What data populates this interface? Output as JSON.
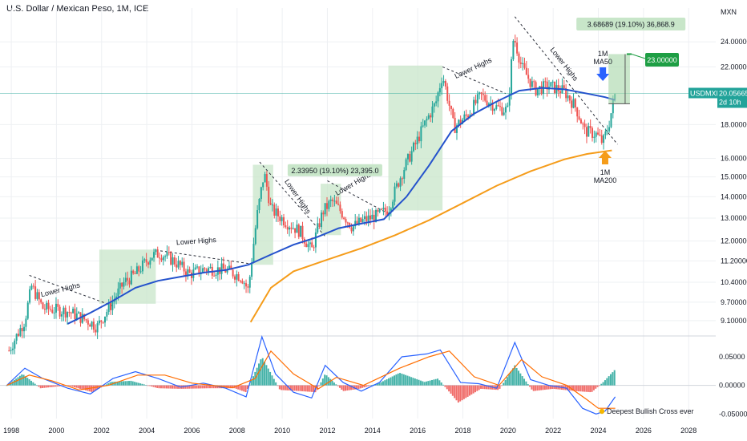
{
  "header": {
    "title": "U.S. Dollar / Mexican Peso, 1M, ICE"
  },
  "colors": {
    "up": "#26a69a",
    "down": "#ef5350",
    "ma50": "#2452cc",
    "ma200": "#f59c1a",
    "box": "#c8e6c9",
    "macd": "#2962ff",
    "signal": "#ff6d00",
    "grid": "#eef0f3",
    "tp": "#1e9e44",
    "price_tag": "#22a39a"
  },
  "chart_data": {
    "type": "candlestick",
    "symbol": "USDMXN",
    "axes": {
      "y_unit_label": "MXN",
      "y_scale": "log",
      "y_ticks": [
        "24.00000",
        "22.00000",
        "18.00000",
        "16.00000",
        "15.00000",
        "14.00000",
        "13.00000",
        "12.00000",
        "11.20000",
        "10.40000",
        "9.70000",
        "9.10000"
      ],
      "y_tick_values": [
        24,
        22,
        18,
        16,
        15,
        14,
        13,
        12,
        11.2,
        10.4,
        9.7,
        9.1
      ],
      "y_range": [
        8.65,
        27.0
      ],
      "x_ticks": [
        "1998",
        "2000",
        "2002",
        "2004",
        "2006",
        "2008",
        "2010",
        "2012",
        "2014",
        "2016",
        "2018",
        "2020",
        "2022",
        "2024",
        "2026",
        "2028"
      ],
      "x_tick_values": [
        1998,
        2000,
        2002,
        2004,
        2006,
        2008,
        2010,
        2012,
        2014,
        2016,
        2018,
        2020,
        2022,
        2024,
        2026,
        2028
      ],
      "x_range": [
        1997.5,
        2029.2
      ],
      "macd_ticks": [
        "0.05000",
        "0.00000",
        "-0.05000"
      ],
      "macd_tick_values": [
        0.05,
        0,
        -0.05
      ],
      "macd_range": [
        -0.058,
        0.085
      ]
    },
    "price_knots": [
      [
        1997.9,
        8.2
      ],
      [
        1998.6,
        9.1
      ],
      [
        1998.9,
        10.25
      ],
      [
        1999.4,
        9.5
      ],
      [
        2000.5,
        9.4
      ],
      [
        2001.5,
        9.05
      ],
      [
        2001.8,
        8.9
      ],
      [
        2002.4,
        9.6
      ],
      [
        2003.0,
        10.4
      ],
      [
        2003.5,
        10.7
      ],
      [
        2004.2,
        11.4
      ],
      [
        2004.6,
        11.5
      ],
      [
        2005.2,
        11.2
      ],
      [
        2005.9,
        10.7
      ],
      [
        2006.6,
        10.9
      ],
      [
        2007.5,
        10.85
      ],
      [
        2008.2,
        10.6
      ],
      [
        2008.5,
        10.1
      ],
      [
        2008.9,
        13.2
      ],
      [
        2009.2,
        15.2
      ],
      [
        2009.5,
        13.4
      ],
      [
        2010.2,
        12.8
      ],
      [
        2010.8,
        12.4
      ],
      [
        2011.3,
        11.6
      ],
      [
        2011.8,
        13.3
      ],
      [
        2012.2,
        13.8
      ],
      [
        2012.6,
        13.3
      ],
      [
        2013.1,
        12.6
      ],
      [
        2013.6,
        12.9
      ],
      [
        2014.2,
        13.1
      ],
      [
        2014.7,
        13.4
      ],
      [
        2015.3,
        15.2
      ],
      [
        2015.9,
        16.8
      ],
      [
        2016.4,
        18.3
      ],
      [
        2016.8,
        19.4
      ],
      [
        2017.1,
        21.4
      ],
      [
        2017.6,
        17.8
      ],
      [
        2018.2,
        18.6
      ],
      [
        2018.8,
        19.9
      ],
      [
        2019.5,
        19.1
      ],
      [
        2020.0,
        18.9
      ],
      [
        2020.25,
        24.5
      ],
      [
        2020.6,
        22.0
      ],
      [
        2021.2,
        20.3
      ],
      [
        2021.8,
        20.6
      ],
      [
        2022.5,
        20.2
      ],
      [
        2023.0,
        19.1
      ],
      [
        2023.4,
        17.6
      ],
      [
        2023.9,
        17.4
      ],
      [
        2024.2,
        16.9
      ],
      [
        2024.45,
        17.9
      ],
      [
        2024.75,
        20.06
      ]
    ],
    "ma50_knots": [
      [
        2000.5,
        9.0
      ],
      [
        2001.5,
        9.35
      ],
      [
        2002.5,
        9.75
      ],
      [
        2003.5,
        10.2
      ],
      [
        2004.5,
        10.45
      ],
      [
        2005.5,
        10.6
      ],
      [
        2006.5,
        10.75
      ],
      [
        2007.5,
        10.85
      ],
      [
        2008.5,
        11.05
      ],
      [
        2009.5,
        11.45
      ],
      [
        2010.5,
        11.85
      ],
      [
        2011.5,
        12.15
      ],
      [
        2012.5,
        12.55
      ],
      [
        2013.5,
        12.75
      ],
      [
        2014.5,
        12.95
      ],
      [
        2015.5,
        14.0
      ],
      [
        2016.5,
        15.6
      ],
      [
        2017.5,
        17.6
      ],
      [
        2018.5,
        18.7
      ],
      [
        2019.5,
        19.5
      ],
      [
        2020.5,
        20.25
      ],
      [
        2021.5,
        20.45
      ],
      [
        2022.5,
        20.35
      ],
      [
        2023.5,
        20.05
      ],
      [
        2024.3,
        19.8
      ],
      [
        2024.75,
        19.6
      ]
    ],
    "ma200_knots": [
      [
        2008.6,
        9.05
      ],
      [
        2009.5,
        10.2
      ],
      [
        2010.5,
        10.8
      ],
      [
        2012,
        11.25
      ],
      [
        2013.5,
        11.7
      ],
      [
        2015,
        12.25
      ],
      [
        2016.5,
        12.9
      ],
      [
        2018,
        13.7
      ],
      [
        2019.5,
        14.55
      ],
      [
        2021,
        15.3
      ],
      [
        2022.5,
        15.95
      ],
      [
        2023.5,
        16.25
      ],
      [
        2024.6,
        16.45
      ]
    ],
    "green_boxes": [
      {
        "x0": 2001.9,
        "x1": 2004.4,
        "y0": 9.65,
        "y1": 11.65
      },
      {
        "x0": 2008.7,
        "x1": 2009.6,
        "y0": 11.05,
        "y1": 15.65
      },
      {
        "x0": 2011.7,
        "x1": 2012.6,
        "y0": 12.25,
        "y1": 14.65
      },
      {
        "x0": 2014.7,
        "x1": 2017.1,
        "y0": 13.35,
        "y1": 22.1
      }
    ],
    "lower_high_lines": [
      {
        "x0": 1998.8,
        "y0": 10.65,
        "x1": 2002.6,
        "y1": 9.55
      },
      {
        "x0": 2004.6,
        "y0": 11.6,
        "x1": 2008.5,
        "y1": 11.1
      },
      {
        "x0": 2009.0,
        "y0": 15.8,
        "x1": 2011.9,
        "y1": 12.2
      },
      {
        "x0": 2012.0,
        "y0": 14.8,
        "x1": 2014.7,
        "y1": 13.2
      },
      {
        "x0": 2017.1,
        "y0": 22.0,
        "x1": 2019.9,
        "y1": 20.05
      },
      {
        "x0": 2020.3,
        "y0": 26.2,
        "x1": 2024.85,
        "y1": 16.8
      }
    ],
    "projection": {
      "x0": 2024.45,
      "x1": 2025.4,
      "y0": 19.35,
      "y1": 23.0,
      "label": "3.68689 (19.10%) 36,868.9"
    },
    "macd": {
      "macd_knots": [
        [
          1997.8,
          0.0
        ],
        [
          1998.6,
          0.03
        ],
        [
          1999.4,
          0.012
        ],
        [
          2000.5,
          -0.005
        ],
        [
          2001.5,
          -0.015
        ],
        [
          2002.5,
          0.012
        ],
        [
          2003.5,
          0.024
        ],
        [
          2004.5,
          0.012
        ],
        [
          2005.5,
          -0.003
        ],
        [
          2006.5,
          0.004
        ],
        [
          2007.5,
          -0.005
        ],
        [
          2008.4,
          -0.02
        ],
        [
          2009.1,
          0.085
        ],
        [
          2009.7,
          0.02
        ],
        [
          2010.5,
          -0.012
        ],
        [
          2011.3,
          -0.022
        ],
        [
          2011.9,
          0.035
        ],
        [
          2012.7,
          0.005
        ],
        [
          2013.5,
          -0.01
        ],
        [
          2014.3,
          0.005
        ],
        [
          2015.3,
          0.05
        ],
        [
          2016.4,
          0.055
        ],
        [
          2017.0,
          0.062
        ],
        [
          2017.9,
          0.005
        ],
        [
          2018.7,
          0.003
        ],
        [
          2019.5,
          -0.005
        ],
        [
          2020.3,
          0.075
        ],
        [
          2021.0,
          0.01
        ],
        [
          2021.8,
          0.0
        ],
        [
          2022.6,
          -0.005
        ],
        [
          2023.3,
          -0.04
        ],
        [
          2023.9,
          -0.05
        ],
        [
          2024.3,
          -0.045
        ],
        [
          2024.75,
          -0.02
        ]
      ],
      "signal_knots": [
        [
          1997.8,
          0.0
        ],
        [
          1998.8,
          0.018
        ],
        [
          1999.8,
          0.008
        ],
        [
          2001.0,
          -0.008
        ],
        [
          2002.3,
          0.0
        ],
        [
          2003.6,
          0.018
        ],
        [
          2004.8,
          0.018
        ],
        [
          2006.0,
          0.004
        ],
        [
          2007.8,
          -0.004
        ],
        [
          2008.8,
          0.012
        ],
        [
          2009.5,
          0.06
        ],
        [
          2010.5,
          0.02
        ],
        [
          2011.6,
          -0.006
        ],
        [
          2012.4,
          0.014
        ],
        [
          2013.6,
          0.0
        ],
        [
          2015.2,
          0.03
        ],
        [
          2016.5,
          0.05
        ],
        [
          2017.4,
          0.06
        ],
        [
          2018.5,
          0.015
        ],
        [
          2019.6,
          0.0
        ],
        [
          2020.6,
          0.045
        ],
        [
          2021.5,
          0.015
        ],
        [
          2022.6,
          0.0
        ],
        [
          2023.5,
          -0.025
        ],
        [
          2024.0,
          -0.04
        ],
        [
          2024.75,
          -0.04
        ]
      ],
      "hist_knots": [
        [
          1997.8,
          0.0
        ],
        [
          1998.5,
          0.02
        ],
        [
          1999.3,
          -0.005
        ],
        [
          2000.5,
          0.0
        ],
        [
          2001.6,
          -0.012
        ],
        [
          2002.4,
          0.006
        ],
        [
          2003.3,
          0.008
        ],
        [
          2004.5,
          -0.005
        ],
        [
          2005.5,
          -0.006
        ],
        [
          2006.8,
          -0.005
        ],
        [
          2007.9,
          -0.005
        ],
        [
          2008.4,
          -0.012
        ],
        [
          2009.1,
          0.05
        ],
        [
          2009.9,
          -0.008
        ],
        [
          2010.8,
          -0.01
        ],
        [
          2011.5,
          -0.012
        ],
        [
          2011.9,
          0.02
        ],
        [
          2012.7,
          -0.01
        ],
        [
          2013.4,
          -0.006
        ],
        [
          2014.3,
          0.004
        ],
        [
          2015.2,
          0.022
        ],
        [
          2016.3,
          0.006
        ],
        [
          2016.9,
          0.012
        ],
        [
          2017.8,
          -0.03
        ],
        [
          2018.8,
          -0.006
        ],
        [
          2019.6,
          -0.008
        ],
        [
          2020.3,
          0.035
        ],
        [
          2021.1,
          -0.01
        ],
        [
          2022.0,
          -0.006
        ],
        [
          2023.0,
          -0.01
        ],
        [
          2023.7,
          -0.012
        ],
        [
          2024.2,
          0.005
        ],
        [
          2024.75,
          0.028
        ]
      ]
    }
  },
  "annotations": {
    "lower_highs": [
      {
        "text": "Lower Highs",
        "x": 2000.2,
        "y": 10.05,
        "rot": -14
      },
      {
        "text": "Lower Highs",
        "x": 2006.2,
        "y": 11.9,
        "rot": -4
      },
      {
        "text": "Lower Highs",
        "x": 2010.6,
        "y": 13.95,
        "rot": 55
      },
      {
        "text": "Lower Highs",
        "x": 2013.2,
        "y": 14.55,
        "rot": -30
      },
      {
        "text": "Lower Highs",
        "x": 2018.5,
        "y": 21.75,
        "rot": -25
      },
      {
        "text": "Lower Highs",
        "x": 2022.4,
        "y": 22.1,
        "rot": 52
      }
    ],
    "mid_label": {
      "text": "2.33950 (19.10%) 23,395.0",
      "x": 2012.3,
      "y": 15.25
    },
    "ma50_label": [
      "1M",
      "MA50"
    ],
    "ma200_label": [
      "1M",
      "MA200"
    ],
    "target_label": "23.00000",
    "bullish_cross_label": "Deepest Bullish Cross ever",
    "price_tag": {
      "symbol": "USDMXN",
      "value": "20.05665",
      "countdown": "2d 10h"
    }
  }
}
